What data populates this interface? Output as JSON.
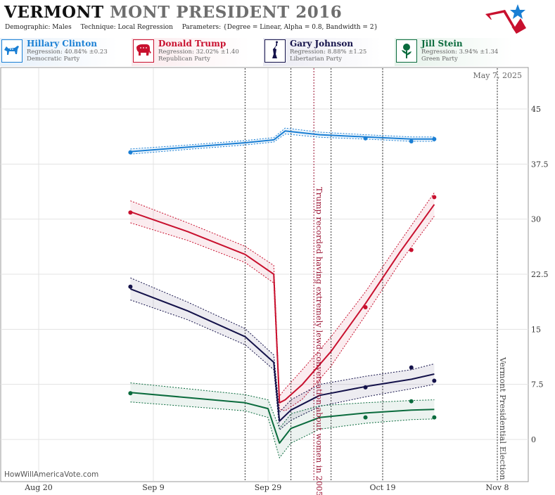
{
  "header": {
    "title_bold": "VERMONT",
    "title_rest": "MONT PRESIDENT 2016",
    "demographic": "Demographic: Males",
    "technique": "Technique: Local Regression",
    "parameters": "Parameters: {Degree = Linear, Alpha = 0.8, Bandwidth = 2}"
  },
  "candidates": [
    {
      "name": "Hillary Clinton",
      "regression": "Regression: 40.84% ±0.23",
      "party": "Democratic Party",
      "color": "#1a7fd4",
      "icon": "donkey-icon"
    },
    {
      "name": "Donald Trump",
      "regression": "Regression: 32.02% ±1.40",
      "party": "Republican Party",
      "color": "#c8102e",
      "icon": "elephant-icon"
    },
    {
      "name": "Gary Johnson",
      "regression": "Regression: 8.88% ±1.25",
      "party": "Libertarian Party",
      "color": "#14124a",
      "icon": "statue-of-liberty-icon"
    },
    {
      "name": "Jill Stein",
      "regression": "Regression: 3.94% ±1.34",
      "party": "Green Party",
      "color": "#0a6b3d",
      "icon": "rose-icon"
    }
  ],
  "date_label": "May 7, 2025",
  "credit": "HowWillAmericaVote.com",
  "chart_data": {
    "type": "line",
    "x_ticks": [
      "Aug 20",
      "Sep 9",
      "Sep 29",
      "Oct 19",
      "Nov 8"
    ],
    "y_ticks": [
      "45",
      "37.5",
      "30",
      "22.5",
      "15",
      "7.5",
      "0"
    ],
    "y_tick_values": [
      45,
      37.5,
      30,
      22.5,
      15,
      7.5,
      0
    ],
    "ylim": [
      -2.5,
      48.5
    ],
    "xlim_days_from_aug20": [
      -4,
      82
    ],
    "grid": true,
    "annotations": [
      {
        "text": "Trump recorded having extremely lewd conversation about women in 2005",
        "date": "Oct 7"
      },
      {
        "text": "Vermont Presidential Election",
        "date": "Nov 8"
      }
    ],
    "series": [
      {
        "name": "Hillary Clinton",
        "color": "#1a7fd4",
        "x": [
          "Sep 5",
          "Sep 15",
          "Sep 25",
          "Sep 30",
          "Oct 2",
          "Oct 8",
          "Oct 16",
          "Oct 24",
          "Oct 28"
        ],
        "y": [
          39.2,
          39.8,
          40.4,
          40.8,
          42.0,
          41.5,
          41.2,
          40.9,
          40.9
        ],
        "band": [
          0.35,
          0.3,
          0.3,
          0.3,
          0.4,
          0.35,
          0.3,
          0.3,
          0.3
        ],
        "points_x": [
          "Sep 5",
          "Oct 16",
          "Oct 24",
          "Oct 28"
        ],
        "points_y": [
          39.1,
          41.0,
          40.6,
          40.9
        ]
      },
      {
        "name": "Donald Trump",
        "color": "#c8102e",
        "x": [
          "Sep 5",
          "Sep 15",
          "Sep 25",
          "Sep 30",
          "Oct 1",
          "Oct 2",
          "Oct 5",
          "Oct 10",
          "Oct 16",
          "Oct 22",
          "Oct 28"
        ],
        "y": [
          31.0,
          28.3,
          25.2,
          22.5,
          5.0,
          5.4,
          7.5,
          12.0,
          18.5,
          25.5,
          32.0
        ],
        "band": [
          1.5,
          1.2,
          1.1,
          1.2,
          0.9,
          1.5,
          2.0,
          2.0,
          1.6,
          1.4,
          1.6
        ],
        "points_x": [
          "Sep 5",
          "Oct 16",
          "Oct 24",
          "Oct 28"
        ],
        "points_y": [
          30.9,
          18.0,
          25.8,
          33.0
        ]
      },
      {
        "name": "Gary Johnson",
        "color": "#14124a",
        "x": [
          "Sep 5",
          "Sep 15",
          "Sep 25",
          "Sep 30",
          "Oct 1",
          "Oct 3",
          "Oct 8",
          "Oct 16",
          "Oct 24",
          "Oct 28"
        ],
        "y": [
          20.5,
          17.5,
          14.0,
          10.5,
          2.5,
          4.0,
          6.0,
          7.2,
          8.2,
          8.9
        ],
        "band": [
          1.5,
          1.2,
          1.1,
          1.0,
          1.2,
          1.4,
          1.5,
          1.4,
          1.3,
          1.4
        ],
        "points_x": [
          "Sep 5",
          "Oct 16",
          "Oct 24",
          "Oct 28"
        ],
        "points_y": [
          20.8,
          7.1,
          9.8,
          8.0
        ]
      },
      {
        "name": "Jill Stein",
        "color": "#0a6b3d",
        "x": [
          "Sep 5",
          "Sep 15",
          "Sep 25",
          "Sep 29",
          "Oct 1",
          "Oct 3",
          "Oct 8",
          "Oct 16",
          "Oct 24",
          "Oct 28"
        ],
        "y": [
          6.4,
          5.7,
          5.0,
          4.2,
          -0.5,
          1.5,
          3.0,
          3.6,
          4.0,
          4.1
        ],
        "band": [
          1.3,
          1.2,
          1.1,
          1.2,
          2.0,
          2.0,
          1.6,
          1.4,
          1.3,
          1.3
        ],
        "points_x": [
          "Sep 5",
          "Oct 16",
          "Oct 24",
          "Oct 28"
        ],
        "points_y": [
          6.3,
          3.0,
          5.2,
          3.0
        ]
      }
    ],
    "event_lines": [
      "Sep 25",
      "Oct 3",
      "Oct 7",
      "Oct 10",
      "Oct 19",
      "Nov 8"
    ]
  }
}
